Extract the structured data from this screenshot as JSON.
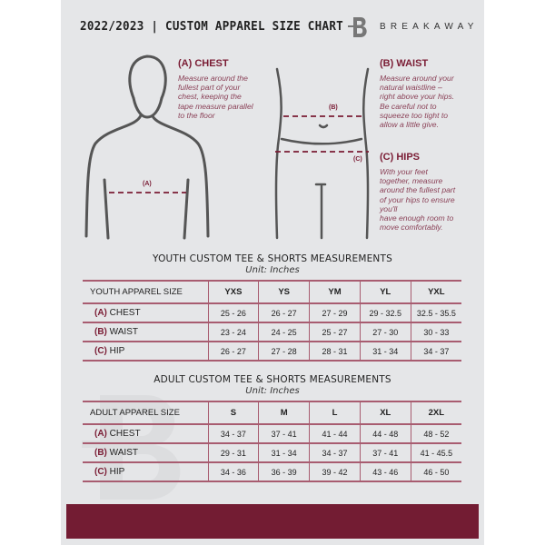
{
  "header": {
    "title": "2022/2023 | CUSTOM APPAREL SIZE CHART",
    "brand": "BREAKAWAY",
    "logo_letter": "B"
  },
  "colors": {
    "accent": "#731c33",
    "panel": "#e5e6e8"
  },
  "guide": {
    "chest": {
      "label": "(A) CHEST",
      "marker": "(A)",
      "lines": [
        "Measure around the",
        "fullest part of your",
        "chest, keeping the",
        "tape measure parallel",
        "to the floor"
      ]
    },
    "waist": {
      "label": "(B) WAIST",
      "marker": "(B)",
      "lines": [
        "Measure around your",
        "natural waistline –",
        "right above your hips.",
        "Be careful not to",
        "squeeze too tight to",
        "allow a little give."
      ]
    },
    "hips": {
      "label": "(C) HIPS",
      "marker": "(C)",
      "lines": [
        "With your feet",
        "together, measure",
        "around the fullest part",
        "of your hips to ensure",
        "you'll",
        "have enough room to",
        "move comfortably."
      ]
    }
  },
  "youth": {
    "title": "YOUTH CUSTOM TEE & SHORTS MEASUREMENTS",
    "unit": "Unit: Inches",
    "header": [
      "YOUTH APPAREL SIZE",
      "YXS",
      "YS",
      "YM",
      "YL",
      "YXL"
    ],
    "rows": [
      {
        "code": "(A)",
        "name": "CHEST",
        "values": [
          "25 - 26",
          "26 - 27",
          "27 - 29",
          "29 - 32.5",
          "32.5 - 35.5"
        ]
      },
      {
        "code": "(B)",
        "name": "WAIST",
        "values": [
          "23 - 24",
          "24 - 25",
          "25 - 27",
          "27 - 30",
          "30 - 33"
        ]
      },
      {
        "code": "(C)",
        "name": "HIP",
        "values": [
          "26 - 27",
          "27 - 28",
          "28 - 31",
          "31 - 34",
          "34 - 37"
        ]
      }
    ]
  },
  "adult": {
    "title": "ADULT CUSTOM TEE & SHORTS MEASUREMENTS",
    "unit": "Unit: Inches",
    "header": [
      "ADULT APPAREL SIZE",
      "S",
      "M",
      "L",
      "XL",
      "2XL"
    ],
    "rows": [
      {
        "code": "(A)",
        "name": "CHEST",
        "values": [
          "34 - 37",
          "37 - 41",
          "41 - 44",
          "44 - 48",
          "48 - 52"
        ]
      },
      {
        "code": "(B)",
        "name": "WAIST",
        "values": [
          "29 - 31",
          "31 - 34",
          "34 - 37",
          "37 - 41",
          "41 - 45.5"
        ]
      },
      {
        "code": "(C)",
        "name": "HIP",
        "values": [
          "34 - 36",
          "36 - 39",
          "39 - 42",
          "43 - 46",
          "46 - 50"
        ]
      }
    ]
  }
}
